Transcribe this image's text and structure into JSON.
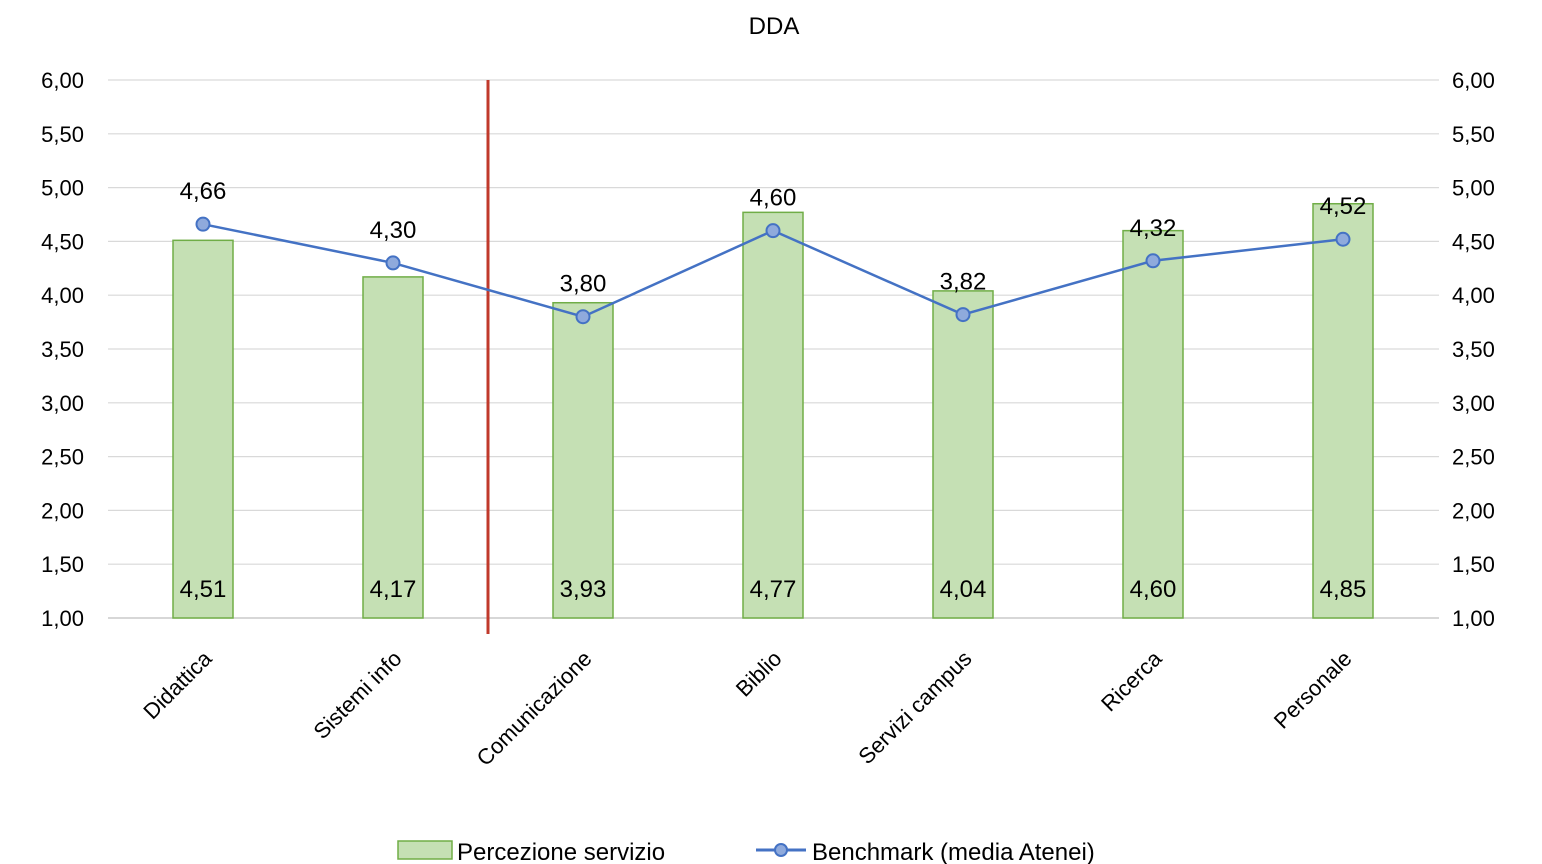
{
  "chart_data": {
    "type": "bar",
    "title": "DDA",
    "categories": [
      "Didattica",
      "Sistemi info",
      "Comunicazione",
      "Biblio",
      "Servizi campus",
      "Ricerca",
      "Personale"
    ],
    "series": [
      {
        "name": "Percezione servizio",
        "kind": "bar",
        "color": "#c5e0b4",
        "border_color": "#70ad47",
        "values": [
          4.51,
          4.17,
          3.93,
          4.77,
          4.04,
          4.6,
          4.85
        ],
        "labels": [
          "4,51",
          "4,17",
          "3,93",
          "4,77",
          "4,04",
          "4,60",
          "4,85"
        ]
      },
      {
        "name": "Benchmark (media Atenei)",
        "kind": "line",
        "color": "#4472c4",
        "marker_color": "#8faadc",
        "values": [
          4.66,
          4.3,
          3.8,
          4.6,
          3.82,
          4.32,
          4.52
        ],
        "labels": [
          "4,66",
          "4,30",
          "3,80",
          "4,60",
          "3,82",
          "4,32",
          "4,52"
        ]
      }
    ],
    "ylim": [
      1.0,
      6.0
    ],
    "ytick_values": [
      1.0,
      1.5,
      2.0,
      2.5,
      3.0,
      3.5,
      4.0,
      4.5,
      5.0,
      5.5,
      6.0
    ],
    "ytick_labels": [
      "1,00",
      "1,50",
      "2,00",
      "2,50",
      "3,00",
      "3,50",
      "4,00",
      "4,50",
      "5,00",
      "5,50",
      "6,00"
    ],
    "secondary_axis": true,
    "grid": true,
    "legend_position": "bottom",
    "divider": {
      "after_category_index": 1,
      "color": "#c0392b"
    }
  }
}
